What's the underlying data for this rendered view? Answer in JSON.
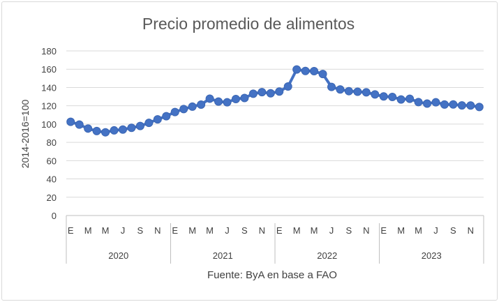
{
  "chart_data": {
    "type": "line",
    "title": "Precio promedio de alimentos",
    "ylabel": "2014-2016=100",
    "source": "Fuente: ByA en base a FAO",
    "ylim": [
      0,
      180
    ],
    "yticks": [
      0,
      20,
      40,
      60,
      80,
      100,
      120,
      140,
      160,
      180
    ],
    "grid": true,
    "legend": "none",
    "color": "#4472c4",
    "years": [
      "2020",
      "2021",
      "2022",
      "2023"
    ],
    "month_ticks": [
      "E",
      "M",
      "M",
      "J",
      "S",
      "N",
      "E",
      "M",
      "M",
      "J",
      "S",
      "N",
      "E",
      "M",
      "M",
      "J",
      "S",
      "N",
      "E",
      "M",
      "M",
      "J",
      "S",
      "N"
    ],
    "values": [
      102.5,
      99.4,
      95.1,
      92.4,
      91.0,
      93.1,
      94.0,
      95.9,
      97.9,
      101.3,
      105.2,
      108.6,
      113.2,
      116.4,
      119.1,
      121.3,
      127.8,
      124.6,
      123.8,
      127.4,
      128.5,
      133.2,
      134.9,
      133.7,
      135.6,
      141.1,
      159.7,
      158.1,
      157.9,
      154.7,
      140.6,
      137.9,
      136.0,
      135.4,
      134.7,
      132.4,
      130.2,
      129.7,
      126.9,
      127.7,
      124.0,
      122.4,
      123.8,
      121.4,
      121.5,
      120.4,
      120.3,
      118.7
    ]
  }
}
